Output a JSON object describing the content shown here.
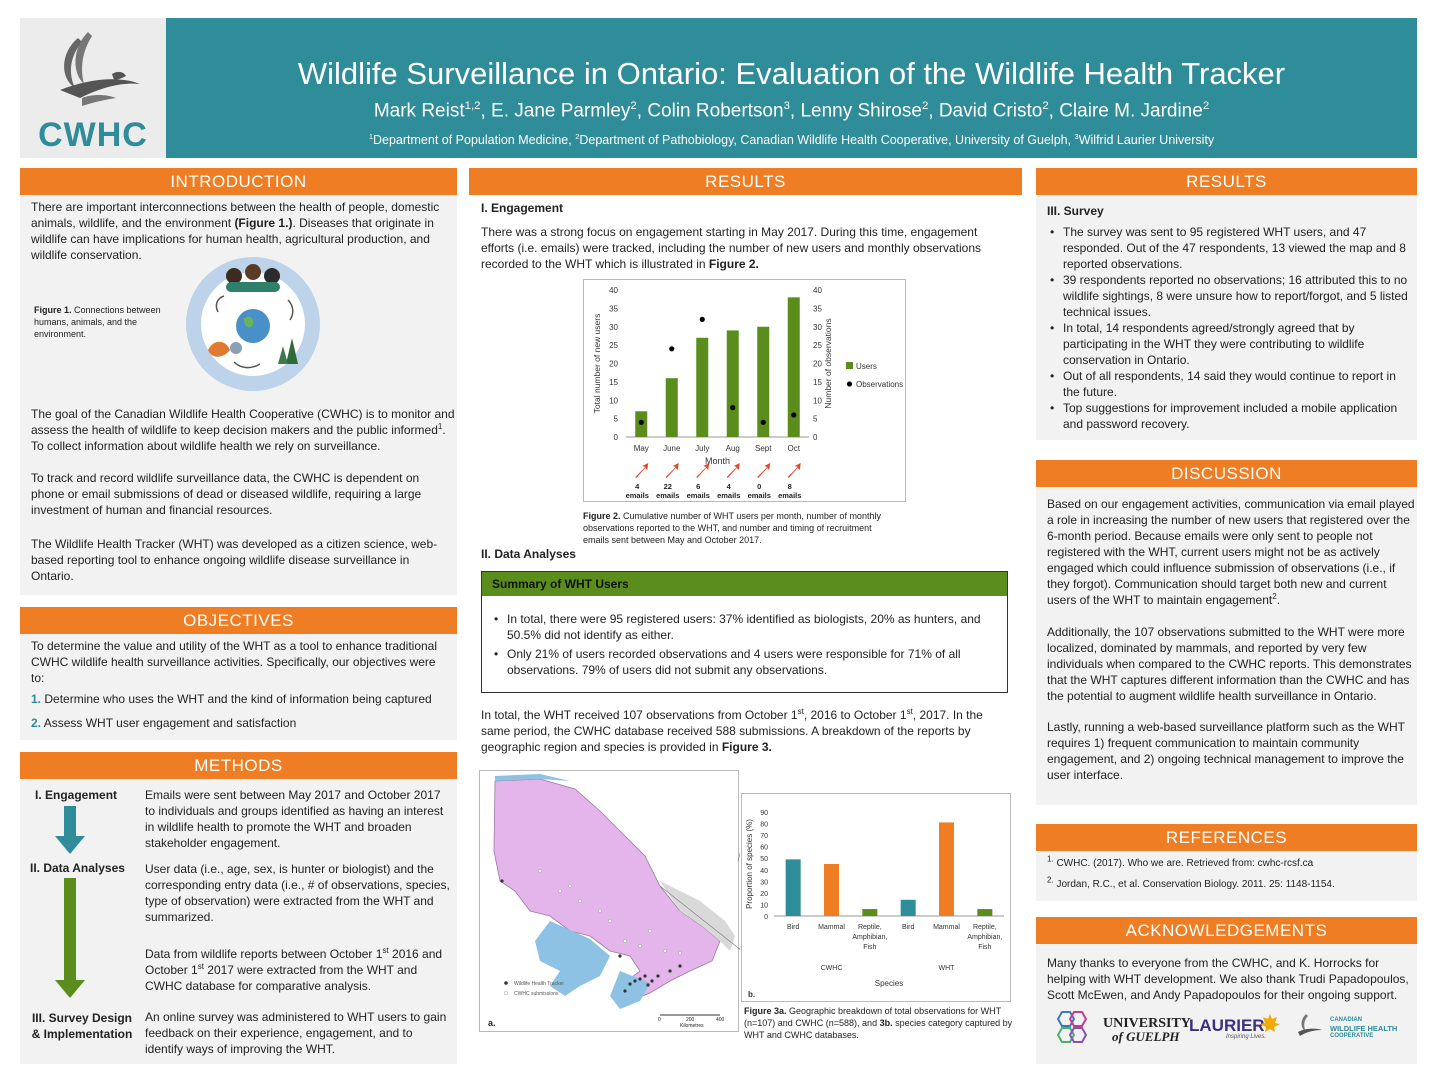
{
  "header": {
    "logo_text": "CWHC",
    "title": "Wildlife Surveillance in Ontario: Evaluation of the Wildlife Health Tracker",
    "authors": "Mark Reist1,2, E. Jane Parmley2, Colin Robertson3, Lenny Shirose2, David Cristo2, Claire M. Jardine2",
    "affiliations": "1Department of Population Medicine, 2Department of Pathobiology, Canadian Wildlife Health Cooperative, University of Guelph, 3Wilfrid Laurier University"
  },
  "colors": {
    "teal": "#2f8c99",
    "orange": "#ee7d23",
    "green": "#5a8d1c"
  },
  "introduction": {
    "heading": "INTRODUCTION",
    "p1_a": "There are important interconnections between the health of people, domestic animals, wildlife, and the environment ",
    "p1_b": "(Figure 1.)",
    "p1_c": ". Diseases that originate in wildlife can have implications for human health, agricultural production, and wildlife conservation.",
    "fig1_label": "Figure 1.",
    "fig1_caption": " Connections between humans, animals, and the environment.",
    "p2_a": "The goal of the Canadian Wildlife Health Cooperative (CWHC) is to monitor and assess the health of wildlife to keep decision makers and the public informed",
    "p2_sup": "1",
    "p2_b": ". To collect information about wildlife health we rely on surveillance.",
    "p3": "To track and record wildlife surveillance data, the CWHC is dependent on phone or email submissions of dead or diseased wildlife, requiring a large investment of human and financial resources.",
    "p4": "The Wildlife Health Tracker (WHT) was developed as a citizen science, web-based reporting tool to enhance ongoing wildlife disease surveillance in Ontario."
  },
  "objectives": {
    "heading": "OBJECTIVES",
    "intro": "To determine the value and utility of the WHT as a tool to enhance traditional CWHC wildlife health surveillance activities. Specifically, our objectives were to:",
    "items": [
      {
        "num": "1.",
        "text": " Determine who uses the WHT and the kind of information being captured"
      },
      {
        "num": "2.",
        "text": " Assess WHT user engagement and satisfaction"
      }
    ]
  },
  "methods": {
    "heading": "METHODS",
    "steps": [
      {
        "label": "I. Engagement",
        "text": "Emails were sent between May 2017 and October 2017 to individuals and groups identified as having an interest in wildlife health to promote the WHT and broaden stakeholder engagement."
      },
      {
        "label": "II. Data Analyses",
        "text": "User data (i.e., age, sex, is hunter or biologist) and the corresponding entry data (i.e., # of observations, species, type of observation) were extracted from the WHT and summarized."
      },
      {
        "label": "",
        "text_a": "Data from wildlife reports between October 1",
        "text_sup1": "st",
        "text_b": " 2016 and October 1",
        "text_sup2": "st",
        "text_c": " 2017 were extracted from the WHT and CWHC database for comparative analysis."
      },
      {
        "label": "III. Survey Design & Implementation",
        "text": "An online survey was administered to WHT users to gain feedback on their experience, engagement, and to identify ways of improving the WHT."
      }
    ]
  },
  "results_mid": {
    "heading": "RESULTS",
    "engagement_title": "I. Engagement",
    "engagement_a": "There was a strong focus on engagement starting in May 2017. During this time, engagement efforts (i.e. emails) were tracked, including the number of new users and monthly observations recorded to the WHT which is illustrated in ",
    "engagement_b": "Figure 2.",
    "fig2_label": "Figure 2.",
    "fig2_caption": " Cumulative number of WHT users per month, number of monthly observations reported to the WHT, and number and timing of recruitment emails sent between May and October 2017.",
    "data_title": "II. Data Analyses",
    "summary_title": "Summary of WHT Users",
    "summary_items": [
      "In total, there were 95 registered users: 37% identified as biologists, 20% as hunters, and 50.5% did not identify as either.",
      "Only 21% of users recorded observations and 4 users were responsible for 71% of all observations. 79% of users did not submit any observations."
    ],
    "total_a": "In total, the WHT received 107 observations from October 1",
    "total_sup1": "st",
    "total_b": ", 2016 to October 1",
    "total_sup2": "st",
    "total_c": ", 2017. In the same period, the CWHC database received 588 submissions. A breakdown of the reports by geographic region and species is provided in ",
    "total_d": "Figure 3.",
    "map_legend": [
      "Wildlife Health Tracker",
      "CWHC submissions"
    ],
    "map_scale": [
      "0",
      "200",
      "400",
      "Kilometres"
    ],
    "map_panel_label": "a.",
    "bar_panel_label": "b.",
    "fig3_label_a": "Figure 3a.",
    "fig3_caption_a": " Geographic breakdown of total observations for WHT (n=107) and CWHC (n=588), and ",
    "fig3_label_b": "3b.",
    "fig3_caption_b": " species category captured by WHT and CWHC databases."
  },
  "results_right": {
    "heading": "RESULTS",
    "survey_title": "III. Survey",
    "items": [
      "The survey was sent to 95 registered WHT users, and 47 responded. Out of the 47 respondents, 13 viewed the map and 8 reported observations.",
      "39 respondents reported no observations; 16 attributed this to no wildlife sightings, 8 were unsure how to report/forgot, and 5 listed technical issues.",
      "In total, 14 respondents agreed/strongly agreed that by participating  in the WHT they were contributing to wildlife conservation in Ontario.",
      "Out of all respondents, 14 said they would continue to report in the future.",
      "Top suggestions for improvement included a mobile application and password recovery."
    ]
  },
  "discussion": {
    "heading": "DISCUSSION",
    "p1_a": "Based on our engagement activities, communication via email played a role in increasing the number of new users that registered over the 6-month period. Because emails were only sent to people not registered with the WHT, current users might not be as actively engaged which could influence submission of observations (i.e., if they forgot). Communication should target both new and current users of the WHT to maintain engagement",
    "p1_sup": "2",
    "p1_b": ".",
    "p2": "Additionally, the 107 observations submitted to the WHT were more localized, dominated by mammals, and reported by very few individuals when compared to the CWHC reports. This demonstrates that the WHT captures different information than the CWHC and has the potential to augment wildlife health surveillance in Ontario.",
    "p3": "Lastly, running a web-based surveillance platform such as the WHT requires 1) frequent communication to maintain community engagement, and 2) ongoing technical management to improve the user interface."
  },
  "references": {
    "heading": "REFERENCES",
    "items": [
      {
        "num": "1.",
        "text": " CWHC. (2017). Who we are. Retrieved from: cwhc-rcsf.ca"
      },
      {
        "num": "2.",
        "text": " Jordan, R.C., et al. Conservation Biology. 2011.  25: 1148-1154."
      }
    ]
  },
  "acknowledgements": {
    "heading": "ACKNOWLEDGEMENTS",
    "text": "Many thanks to everyone from the CWHC, and K. Horrocks for helping with WHT development. We also thank Trudi Papadopoulos, Scott McEwen, and Andy Papadopoulos for their ongoing support.",
    "logos": [
      "UNIVERSITY",
      "of GUELPH",
      "LAURIER",
      "Inspiring Lives.",
      "CANADIAN",
      "WILDLIFE HEALTH",
      "COOPERATIVE"
    ]
  },
  "chart_data": [
    {
      "type": "bar",
      "categories": [
        "May",
        "June",
        "July",
        "Aug",
        "Sept",
        "Oct"
      ],
      "series": [
        {
          "name": "Users",
          "type": "bar",
          "axis": "left",
          "values": [
            7,
            16,
            27,
            29,
            30,
            38
          ]
        },
        {
          "name": "Observations",
          "type": "scatter",
          "axis": "right",
          "values": [
            4,
            24,
            32,
            8,
            4,
            6
          ]
        }
      ],
      "xlabel": "Month",
      "ylabel": "Total number of new users",
      "y2label": "Number of observations",
      "ylim": [
        0,
        40
      ],
      "y2lim": [
        0,
        40
      ],
      "yticks": [
        0,
        5,
        10,
        15,
        20,
        25,
        30,
        35,
        40
      ],
      "emails": [
        "4",
        "22",
        "6",
        "4",
        "0",
        "8"
      ],
      "emails_word": "emails",
      "legend": "right"
    },
    {
      "type": "bar",
      "groups": [
        "CWHC",
        "WHT"
      ],
      "categories": [
        "Bird",
        "Mammal",
        "Reptile, Amphibian, Fish",
        "Bird",
        "Mammal",
        "Reptile, Amphibian, Fish"
      ],
      "values": [
        49,
        45,
        6,
        14,
        81,
        6
      ],
      "colors": [
        "#2f8c99",
        "#ee7d23",
        "#5a8d1c",
        "#2f8c99",
        "#ee7d23",
        "#5a8d1c"
      ],
      "xlabel": "Species",
      "ylabel": "Proportion of species (%)",
      "ylim": [
        0,
        90
      ],
      "yticks": [
        0,
        10,
        20,
        30,
        40,
        50,
        60,
        70,
        80,
        90
      ]
    }
  ]
}
